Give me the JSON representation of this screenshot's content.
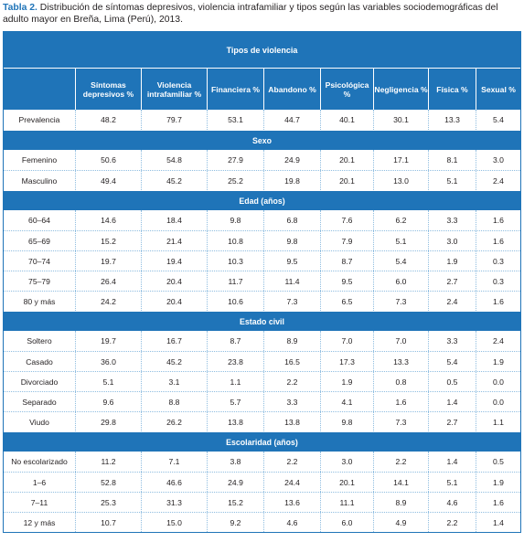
{
  "caption": {
    "label": "Tabla 2.",
    "text": " Distribución de síntomas depresivos, violencia intrafamiliar y tipos según las variables sociodemográficas del adulto mayor en Breña, Lima (Perú), 2013."
  },
  "header": {
    "title": "Tipos de violencia",
    "columns": [
      "",
      "Síntomas depresivos %",
      "Violencia intrafamiliar %",
      "Financiera %",
      "Abandono %",
      "Psicológica %",
      "Negligencia %",
      "Física %",
      "Sexual %"
    ]
  },
  "prevalence": {
    "label": "Prevalencia",
    "values": [
      "48.2",
      "79.7",
      "53.1",
      "44.7",
      "40.1",
      "30.1",
      "13.3",
      "5.4"
    ]
  },
  "sections": [
    {
      "title": "Sexo",
      "rows": [
        {
          "label": "Femenino",
          "values": [
            "50.6",
            "54.8",
            "27.9",
            "24.9",
            "20.1",
            "17.1",
            "8.1",
            "3.0"
          ]
        },
        {
          "label": "Masculino",
          "values": [
            "49.4",
            "45.2",
            "25.2",
            "19.8",
            "20.1",
            "13.0",
            "5.1",
            "2.4"
          ]
        }
      ]
    },
    {
      "title": "Edad (años)",
      "rows": [
        {
          "label": "60–64",
          "values": [
            "14.6",
            "18.4",
            "9.8",
            "6.8",
            "7.6",
            "6.2",
            "3.3",
            "1.6"
          ]
        },
        {
          "label": "65–69",
          "values": [
            "15.2",
            "21.4",
            "10.8",
            "9.8",
            "7.9",
            "5.1",
            "3.0",
            "1.6"
          ]
        },
        {
          "label": "70–74",
          "values": [
            "19.7",
            "19.4",
            "10.3",
            "9.5",
            "8.7",
            "5.4",
            "1.9",
            "0.3"
          ]
        },
        {
          "label": "75–79",
          "values": [
            "26.4",
            "20.4",
            "11.7",
            "11.4",
            "9.5",
            "6.0",
            "2.7",
            "0.3"
          ]
        },
        {
          "label": "80 y más",
          "values": [
            "24.2",
            "20.4",
            "10.6",
            "7.3",
            "6.5",
            "7.3",
            "2.4",
            "1.6"
          ]
        }
      ]
    },
    {
      "title": "Estado civil",
      "rows": [
        {
          "label": "Soltero",
          "values": [
            "19.7",
            "16.7",
            "8.7",
            "8.9",
            "7.0",
            "7.0",
            "3.3",
            "2.4"
          ]
        },
        {
          "label": "Casado",
          "values": [
            "36.0",
            "45.2",
            "23.8",
            "16.5",
            "17.3",
            "13.3",
            "5.4",
            "1.9"
          ]
        },
        {
          "label": "Divorciado",
          "values": [
            "5.1",
            "3.1",
            "1.1",
            "2.2",
            "1.9",
            "0.8",
            "0.5",
            "0.0"
          ]
        },
        {
          "label": "Separado",
          "values": [
            "9.6",
            "8.8",
            "5.7",
            "3.3",
            "4.1",
            "1.6",
            "1.4",
            "0.0"
          ]
        },
        {
          "label": "Viudo",
          "values": [
            "29.8",
            "26.2",
            "13.8",
            "13.8",
            "9.8",
            "7.3",
            "2.7",
            "1.1"
          ]
        }
      ]
    },
    {
      "title": "Escolaridad (años)",
      "rows": [
        {
          "label": "No escolarizado",
          "values": [
            "11.2",
            "7.1",
            "3.8",
            "2.2",
            "3.0",
            "2.2",
            "1.4",
            "0.5"
          ]
        },
        {
          "label": "1–6",
          "values": [
            "52.8",
            "46.6",
            "24.9",
            "24.4",
            "20.1",
            "14.1",
            "5.1",
            "1.9"
          ]
        },
        {
          "label": "7–11",
          "values": [
            "25.3",
            "31.3",
            "15.2",
            "13.6",
            "11.1",
            "8.9",
            "4.6",
            "1.6"
          ]
        },
        {
          "label": "12 y más",
          "values": [
            "10.7",
            "15.0",
            "9.2",
            "4.6",
            "6.0",
            "4.9",
            "2.2",
            "1.4"
          ]
        }
      ]
    }
  ],
  "colors": {
    "header_bg": "#1f74b8",
    "label_accent": "#1f74b8",
    "rule": "#8fbde0"
  }
}
